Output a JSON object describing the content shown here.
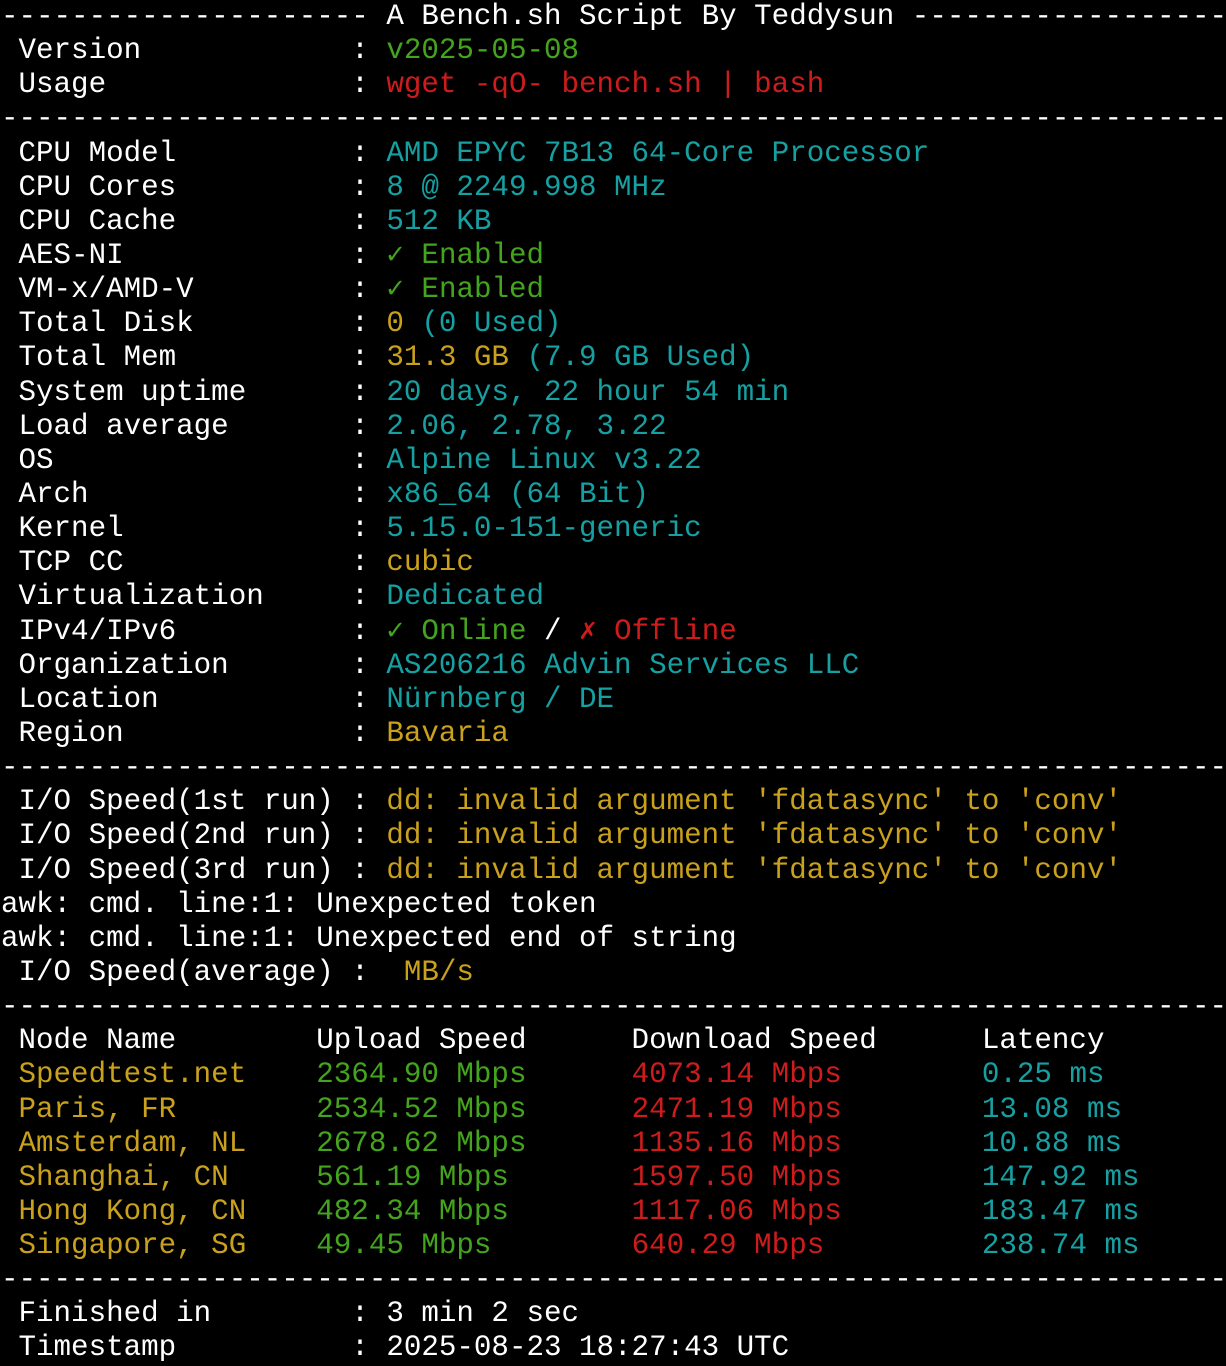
{
  "palette": {
    "background": "#000000",
    "foreground": "#ffffff",
    "white": "#ffffff",
    "green": "#44a41e",
    "red": "#ce1c1c",
    "yellow": "#c9a11c",
    "cyan": "#16a0a2"
  },
  "terminal": {
    "columns": 70,
    "rows": 40,
    "title": "A Bench.sh Script By Teddysun",
    "sections": [
      {
        "name": "banner",
        "lines": [
          {
            "name": "banner-line",
            "segments": [
              {
                "t": "--------------------- A Bench.sh Script By Teddysun ------------------",
                "c": "white"
              }
            ]
          },
          {
            "name": "version-line",
            "segments": [
              {
                "t": " Version            : ",
                "c": "white"
              },
              {
                "t": "v2025-05-08",
                "c": "green"
              }
            ]
          },
          {
            "name": "usage-line",
            "segments": [
              {
                "t": " Usage              : ",
                "c": "white"
              },
              {
                "t": "wget -qO- bench.sh | bash",
                "c": "red"
              }
            ]
          },
          {
            "name": "separator-line",
            "segments": [
              {
                "t": "----------------------------------------------------------------------",
                "c": "white"
              }
            ]
          }
        ]
      },
      {
        "name": "system-info",
        "lines": [
          {
            "name": "cpu-model-line",
            "segments": [
              {
                "t": " CPU Model          : ",
                "c": "white"
              },
              {
                "t": "AMD EPYC 7B13 64-Core Processor",
                "c": "cyan"
              }
            ]
          },
          {
            "name": "cpu-cores-line",
            "segments": [
              {
                "t": " CPU Cores          : ",
                "c": "white"
              },
              {
                "t": "8 @ 2249.998 MHz",
                "c": "cyan"
              }
            ]
          },
          {
            "name": "cpu-cache-line",
            "segments": [
              {
                "t": " CPU Cache          : ",
                "c": "white"
              },
              {
                "t": "512 KB",
                "c": "cyan"
              }
            ]
          },
          {
            "name": "aes-ni-line",
            "segments": [
              {
                "t": " AES-NI             : ",
                "c": "white"
              },
              {
                "t": "✓ Enabled",
                "c": "green"
              }
            ]
          },
          {
            "name": "vmx-amdv-line",
            "segments": [
              {
                "t": " VM-x/AMD-V         : ",
                "c": "white"
              },
              {
                "t": "✓ Enabled",
                "c": "green"
              }
            ]
          },
          {
            "name": "total-disk-line",
            "segments": [
              {
                "t": " Total Disk         : ",
                "c": "white"
              },
              {
                "t": "0",
                "c": "yellow"
              },
              {
                "t": " (0 Used)",
                "c": "cyan"
              }
            ]
          },
          {
            "name": "total-mem-line",
            "segments": [
              {
                "t": " Total Mem          : ",
                "c": "white"
              },
              {
                "t": "31.3 GB",
                "c": "yellow"
              },
              {
                "t": " (7.9 GB Used)",
                "c": "cyan"
              }
            ]
          },
          {
            "name": "uptime-line",
            "segments": [
              {
                "t": " System uptime      : ",
                "c": "white"
              },
              {
                "t": "20 days, 22 hour 54 min",
                "c": "cyan"
              }
            ]
          },
          {
            "name": "load-average-line",
            "segments": [
              {
                "t": " Load average       : ",
                "c": "white"
              },
              {
                "t": "2.06, 2.78, 3.22",
                "c": "cyan"
              }
            ]
          },
          {
            "name": "os-line",
            "segments": [
              {
                "t": " OS                 : ",
                "c": "white"
              },
              {
                "t": "Alpine Linux v3.22",
                "c": "cyan"
              }
            ]
          },
          {
            "name": "arch-line",
            "segments": [
              {
                "t": " Arch               : ",
                "c": "white"
              },
              {
                "t": "x86_64 (64 Bit)",
                "c": "cyan"
              }
            ]
          },
          {
            "name": "kernel-line",
            "segments": [
              {
                "t": " Kernel             : ",
                "c": "white"
              },
              {
                "t": "5.15.0-151-generic",
                "c": "cyan"
              }
            ]
          },
          {
            "name": "tcp-cc-line",
            "segments": [
              {
                "t": " TCP CC             : ",
                "c": "white"
              },
              {
                "t": "cubic",
                "c": "yellow"
              }
            ]
          },
          {
            "name": "virtualization-line",
            "segments": [
              {
                "t": " Virtualization     : ",
                "c": "white"
              },
              {
                "t": "Dedicated",
                "c": "cyan"
              }
            ]
          },
          {
            "name": "ip-status-line",
            "segments": [
              {
                "t": " IPv4/IPv6          : ",
                "c": "white"
              },
              {
                "t": "✓ Online",
                "c": "green"
              },
              {
                "t": " / ",
                "c": "white"
              },
              {
                "t": "✗ Offline",
                "c": "red"
              }
            ]
          },
          {
            "name": "organization-line",
            "segments": [
              {
                "t": " Organization       : ",
                "c": "white"
              },
              {
                "t": "AS206216 Advin Services LLC",
                "c": "cyan"
              }
            ]
          },
          {
            "name": "location-line",
            "segments": [
              {
                "t": " Location           : ",
                "c": "white"
              },
              {
                "t": "Nürnberg / DE",
                "c": "cyan"
              }
            ]
          },
          {
            "name": "region-line",
            "segments": [
              {
                "t": " Region             : ",
                "c": "white"
              },
              {
                "t": "Bavaria",
                "c": "yellow"
              }
            ]
          },
          {
            "name": "separator-line",
            "segments": [
              {
                "t": "----------------------------------------------------------------------",
                "c": "white"
              }
            ]
          }
        ]
      },
      {
        "name": "io-test",
        "lines": [
          {
            "name": "io-speed-1st-run-line",
            "segments": [
              {
                "t": " I/O Speed(1st run) : ",
                "c": "white"
              },
              {
                "t": "dd: invalid argument 'fdatasync' to 'conv'",
                "c": "yellow"
              }
            ]
          },
          {
            "name": "io-speed-2nd-run-line",
            "segments": [
              {
                "t": " I/O Speed(2nd run) : ",
                "c": "white"
              },
              {
                "t": "dd: invalid argument 'fdatasync' to 'conv'",
                "c": "yellow"
              }
            ]
          },
          {
            "name": "io-speed-3rd-run-line",
            "segments": [
              {
                "t": " I/O Speed(3rd run) : ",
                "c": "white"
              },
              {
                "t": "dd: invalid argument 'fdatasync' to 'conv'",
                "c": "yellow"
              }
            ]
          },
          {
            "name": "awk-error-token-line",
            "segments": [
              {
                "t": "awk: cmd. line:1: Unexpected token",
                "c": "white"
              }
            ]
          },
          {
            "name": "awk-error-string-line",
            "segments": [
              {
                "t": "awk: cmd. line:1: Unexpected end of string",
                "c": "white"
              }
            ]
          },
          {
            "name": "io-speed-average-line",
            "segments": [
              {
                "t": " I/O Speed(average) : ",
                "c": "white"
              },
              {
                "t": " MB/s",
                "c": "yellow"
              }
            ]
          },
          {
            "name": "separator-line",
            "segments": [
              {
                "t": "----------------------------------------------------------------------",
                "c": "white"
              }
            ]
          }
        ]
      },
      {
        "name": "speedtest",
        "lines": [
          {
            "name": "speedtest-header-line",
            "segments": [
              {
                "t": " Node Name        Upload Speed      Download Speed      Latency",
                "c": "white"
              }
            ]
          },
          {
            "name": "speedtest-row-speedtest-net",
            "segments": [
              {
                "t": " Speedtest.net    ",
                "c": "yellow"
              },
              {
                "t": "2364.90 Mbps      ",
                "c": "green"
              },
              {
                "t": "4073.14 Mbps        ",
                "c": "red"
              },
              {
                "t": "0.25 ms",
                "c": "cyan"
              }
            ]
          },
          {
            "name": "speedtest-row-paris",
            "segments": [
              {
                "t": " Paris, FR        ",
                "c": "yellow"
              },
              {
                "t": "2534.52 Mbps      ",
                "c": "green"
              },
              {
                "t": "2471.19 Mbps        ",
                "c": "red"
              },
              {
                "t": "13.08 ms",
                "c": "cyan"
              }
            ]
          },
          {
            "name": "speedtest-row-amsterdam",
            "segments": [
              {
                "t": " Amsterdam, NL    ",
                "c": "yellow"
              },
              {
                "t": "2678.62 Mbps      ",
                "c": "green"
              },
              {
                "t": "1135.16 Mbps        ",
                "c": "red"
              },
              {
                "t": "10.88 ms",
                "c": "cyan"
              }
            ]
          },
          {
            "name": "speedtest-row-shanghai",
            "segments": [
              {
                "t": " Shanghai, CN     ",
                "c": "yellow"
              },
              {
                "t": "561.19 Mbps       ",
                "c": "green"
              },
              {
                "t": "1597.50 Mbps        ",
                "c": "red"
              },
              {
                "t": "147.92 ms",
                "c": "cyan"
              }
            ]
          },
          {
            "name": "speedtest-row-hong-kong",
            "segments": [
              {
                "t": " Hong Kong, CN    ",
                "c": "yellow"
              },
              {
                "t": "482.34 Mbps       ",
                "c": "green"
              },
              {
                "t": "1117.06 Mbps        ",
                "c": "red"
              },
              {
                "t": "183.47 ms",
                "c": "cyan"
              }
            ]
          },
          {
            "name": "speedtest-row-singapore",
            "segments": [
              {
                "t": " Singapore, SG    ",
                "c": "yellow"
              },
              {
                "t": "49.45 Mbps        ",
                "c": "green"
              },
              {
                "t": "640.29 Mbps         ",
                "c": "red"
              },
              {
                "t": "238.74 ms",
                "c": "cyan"
              }
            ]
          },
          {
            "name": "separator-line",
            "segments": [
              {
                "t": "----------------------------------------------------------------------",
                "c": "white"
              }
            ]
          }
        ]
      },
      {
        "name": "footer",
        "lines": [
          {
            "name": "finished-in-line",
            "segments": [
              {
                "t": " Finished in        : ",
                "c": "white"
              },
              {
                "t": "3 min 2 sec",
                "c": "white"
              }
            ]
          },
          {
            "name": "timestamp-line",
            "segments": [
              {
                "t": " Timestamp          : ",
                "c": "white"
              },
              {
                "t": "2025-08-23 18:27:43 UTC",
                "c": "white"
              }
            ]
          }
        ]
      }
    ]
  }
}
